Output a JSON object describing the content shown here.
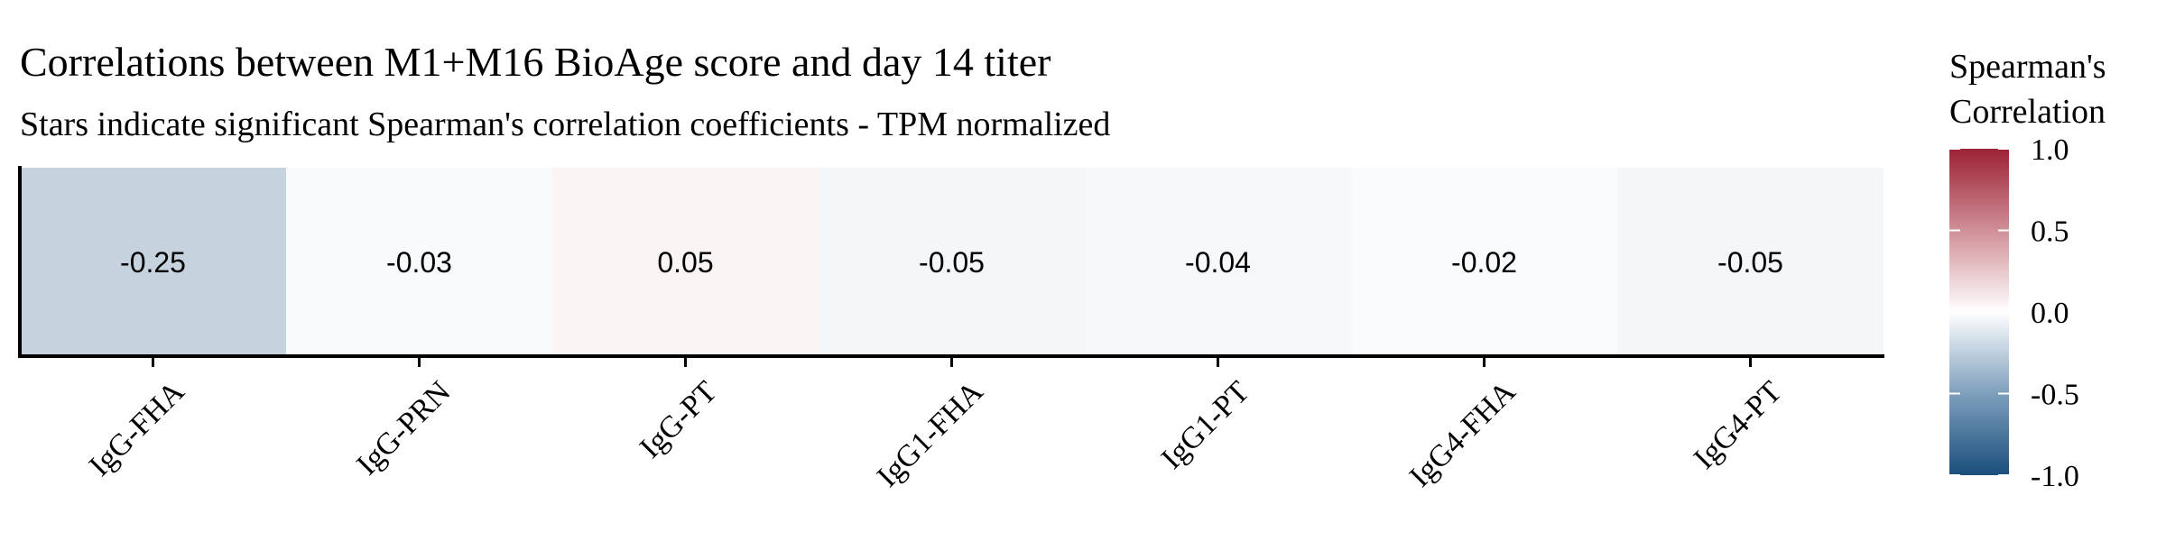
{
  "chart_data": {
    "type": "heatmap",
    "title": "Correlations between M1+M16 BioAge score and day 14 titer",
    "subtitle": "Stars indicate significant Spearman's correlation coefficients - TPM normalized",
    "categories": [
      "IgG-FHA",
      "IgG-PRN",
      "IgG-PT",
      "IgG1-FHA",
      "IgG1-PT",
      "IgG4-FHA",
      "IgG4-PT"
    ],
    "values": [
      -0.25,
      -0.03,
      0.05,
      -0.05,
      -0.04,
      -0.02,
      -0.05
    ],
    "value_labels": [
      "-0.25",
      "-0.03",
      "0.05",
      "-0.05",
      "-0.04",
      "-0.02",
      "-0.05"
    ],
    "legend": {
      "title_line1": "Spearman's",
      "title_line2": "Correlation",
      "ticks": [
        "1.0",
        "0.5",
        "0.0",
        "-0.5",
        "-1.0"
      ],
      "tick_values": [
        1.0,
        0.5,
        0.0,
        -0.5,
        -1.0
      ],
      "range": [
        -1.0,
        1.0
      ],
      "placement": "right"
    },
    "colors": {
      "low": "#1a4e7c",
      "mid": "#ffffff",
      "high": "#9b2235"
    }
  }
}
